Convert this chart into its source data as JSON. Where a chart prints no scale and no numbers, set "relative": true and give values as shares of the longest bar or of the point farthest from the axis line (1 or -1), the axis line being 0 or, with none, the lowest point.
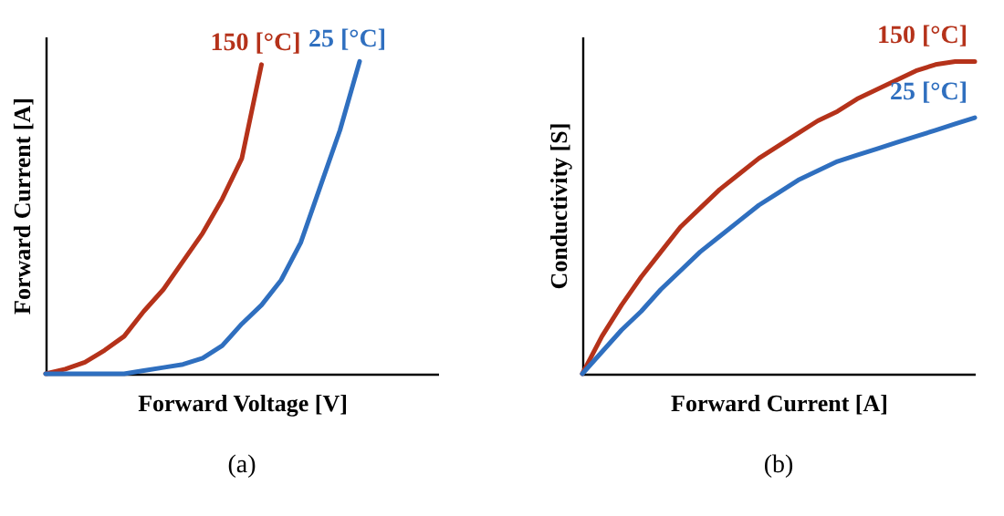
{
  "chart_data": [
    {
      "type": "line",
      "relative": true,
      "xlabel": "Forward Voltage [V]",
      "ylabel": "Forward Current [A]",
      "title": "(a)",
      "categories": [
        null,
        null,
        null,
        null,
        null,
        null,
        null,
        null,
        null,
        null,
        null,
        null,
        null,
        null,
        null,
        null,
        null,
        null,
        null,
        null,
        null
      ],
      "series": [
        {
          "name": "150 [°C]",
          "color": "#b5321a",
          "values": [
            0,
            0.015,
            0.037,
            0.075,
            0.12,
            0.2,
            0.27,
            0.36,
            0.45,
            0.56,
            0.69,
            0.99,
            null,
            null,
            null,
            null,
            null,
            null,
            null,
            null,
            null
          ]
        },
        {
          "name": "25 [°C]",
          "color": "#2f6fbf",
          "values": [
            0,
            0,
            0,
            0,
            0,
            0.01,
            0.02,
            0.03,
            0.05,
            0.09,
            0.16,
            0.22,
            0.3,
            0.42,
            0.6,
            0.78,
            1,
            null,
            null,
            null,
            null
          ]
        }
      ]
    },
    {
      "type": "line",
      "relative": true,
      "xlabel": "Forward Current [A]",
      "ylabel": "Conductivity [S]",
      "title": "(b)",
      "categories": [
        null,
        null,
        null,
        null,
        null,
        null,
        null,
        null,
        null,
        null,
        null,
        null,
        null,
        null,
        null,
        null,
        null,
        null,
        null,
        null,
        null
      ],
      "series": [
        {
          "name": "150 [°C]",
          "color": "#b5321a",
          "values": [
            0,
            0.12,
            0.22,
            0.31,
            0.39,
            0.47,
            0.53,
            0.59,
            0.64,
            0.69,
            0.73,
            0.77,
            0.81,
            0.84,
            0.88,
            0.91,
            0.94,
            0.97,
            0.99,
            1,
            1
          ]
        },
        {
          "name": "25 [°C]",
          "color": "#2f6fbf",
          "values": [
            0,
            0.07,
            0.14,
            0.2,
            0.27,
            0.33,
            0.39,
            0.44,
            0.49,
            0.54,
            0.58,
            0.62,
            0.65,
            0.68,
            0.7,
            0.72,
            0.74,
            0.76,
            0.78,
            0.8,
            0.82
          ]
        }
      ]
    }
  ]
}
